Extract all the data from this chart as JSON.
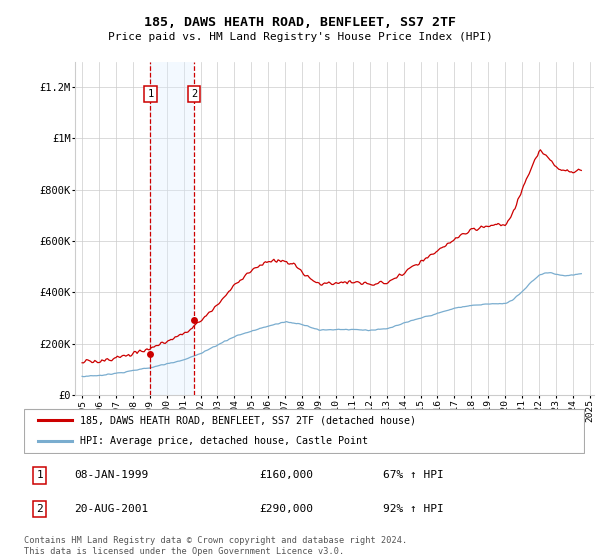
{
  "title": "185, DAWS HEATH ROAD, BENFLEET, SS7 2TF",
  "subtitle": "Price paid vs. HM Land Registry's House Price Index (HPI)",
  "legend_line1": "185, DAWS HEATH ROAD, BENFLEET, SS7 2TF (detached house)",
  "legend_line2": "HPI: Average price, detached house, Castle Point",
  "footnote": "Contains HM Land Registry data © Crown copyright and database right 2024.\nThis data is licensed under the Open Government Licence v3.0.",
  "sale1_label": "08-JAN-1999",
  "sale1_price": 160000,
  "sale1_pct": "67% ↑ HPI",
  "sale2_label": "20-AUG-2001",
  "sale2_price": 290000,
  "sale2_pct": "92% ↑ HPI",
  "red_line_color": "#cc0000",
  "blue_line_color": "#7aadcf",
  "vline_color": "#cc0000",
  "vline_shade_color": "#ddeeff",
  "grid_color": "#cccccc",
  "ylim": [
    0,
    1300000
  ],
  "yticks": [
    0,
    200000,
    400000,
    600000,
    800000,
    1000000,
    1200000
  ],
  "ytick_labels": [
    "£0",
    "£200K",
    "£400K",
    "£600K",
    "£800K",
    "£1M",
    "£1.2M"
  ],
  "sale1_year": 1999.04,
  "sale2_year": 2001.63
}
